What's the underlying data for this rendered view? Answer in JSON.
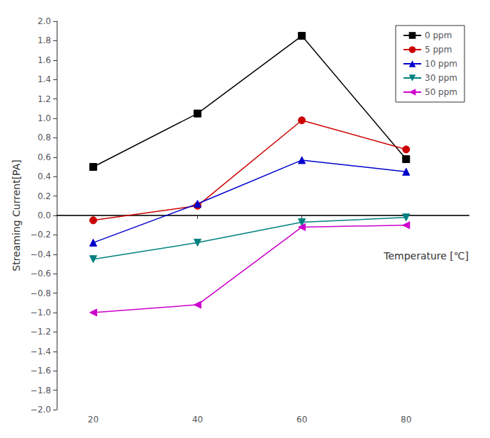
{
  "chart_data": {
    "type": "line",
    "x": [
      20,
      40,
      60,
      80
    ],
    "series": [
      {
        "name": "0 ppm",
        "values": [
          0.5,
          1.05,
          1.85,
          0.58
        ],
        "color": "#000000",
        "marker": "square",
        "line_style": "solid"
      },
      {
        "name": "5 ppm",
        "values": [
          -0.05,
          0.1,
          0.98,
          0.68
        ],
        "color": "#cc0000",
        "marker": "circle",
        "line_style": "solid"
      },
      {
        "name": "10 ppm",
        "values": [
          -0.28,
          0.12,
          0.57,
          0.45
        ],
        "color": "#0000cc",
        "marker": "triangle-up",
        "line_style": "solid"
      },
      {
        "name": "30 ppm",
        "values": [
          -0.45,
          -0.28,
          -0.07,
          -0.02
        ],
        "color": "#008080",
        "marker": "triangle-down",
        "line_style": "solid"
      },
      {
        "name": "50 ppm",
        "values": [
          -1.0,
          -0.92,
          -0.12,
          -0.1
        ],
        "color": "#cc00cc",
        "marker": "triangle-left",
        "line_style": "solid"
      }
    ],
    "xlabel": "Temperature [℃]",
    "ylabel": "Streaming Current[PA]",
    "xlim": [
      13,
      92
    ],
    "xticks": [
      20,
      40,
      60,
      80
    ],
    "ylim": [
      -2.0,
      2.0
    ],
    "yticks": [
      {
        "value": -2.0,
        "label": "−2.0"
      },
      {
        "value": -1.8,
        "label": "−1.8"
      },
      {
        "value": -1.6,
        "label": "−1.6"
      },
      {
        "value": -1.4,
        "label": "−1.4"
      },
      {
        "value": -1.2,
        "label": "−1.2"
      },
      {
        "value": -1.0,
        "label": "−1.0"
      },
      {
        "value": -0.8,
        "label": "−0.8"
      },
      {
        "value": -0.6,
        "label": "−0.6"
      },
      {
        "value": -0.4,
        "label": "−0.4"
      },
      {
        "value": -0.2,
        "label": "−0.2"
      },
      {
        "value": 0.0,
        "label": "0.0"
      },
      {
        "value": 0.2,
        "label": "0.2"
      },
      {
        "value": 0.4,
        "label": "0.4"
      },
      {
        "value": 0.6,
        "label": "0.6"
      },
      {
        "value": 0.8,
        "label": "0.8"
      },
      {
        "value": 1.0,
        "label": "1.0"
      },
      {
        "value": 1.2,
        "label": "1.2"
      },
      {
        "value": 1.4,
        "label": "1.4"
      },
      {
        "value": 1.6,
        "label": "1.6"
      },
      {
        "value": 1.8,
        "label": "1.8"
      },
      {
        "value": 2.0,
        "label": "2.0"
      }
    ],
    "grid": false,
    "legend": "upper right"
  }
}
